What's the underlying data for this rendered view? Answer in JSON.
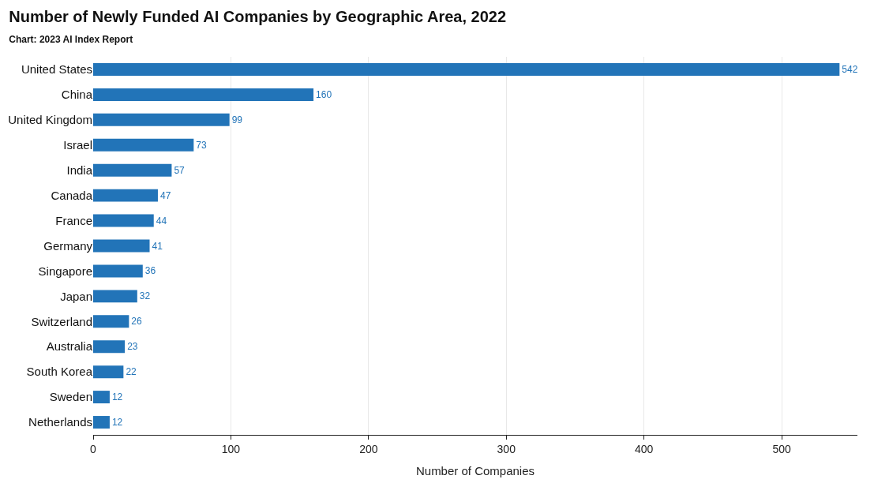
{
  "chart_data": {
    "type": "bar",
    "orientation": "horizontal",
    "title": "Number of Newly Funded AI Companies by Geographic Area, 2022",
    "subtitle": "Chart: 2023 AI Index Report",
    "xlabel": "Number of Companies",
    "categories": [
      "United States",
      "China",
      "United Kingdom",
      "Israel",
      "India",
      "Canada",
      "France",
      "Germany",
      "Singapore",
      "Japan",
      "Switzerland",
      "Australia",
      "South Korea",
      "Sweden",
      "Netherlands"
    ],
    "values": [
      542,
      160,
      99,
      73,
      57,
      47,
      44,
      41,
      36,
      32,
      26,
      23,
      22,
      12,
      12
    ],
    "color": "#2274b8",
    "data_labels": true,
    "xlim": [
      0,
      555
    ],
    "xticks": [
      0,
      100,
      200,
      300,
      400,
      500
    ],
    "grid": "x"
  }
}
